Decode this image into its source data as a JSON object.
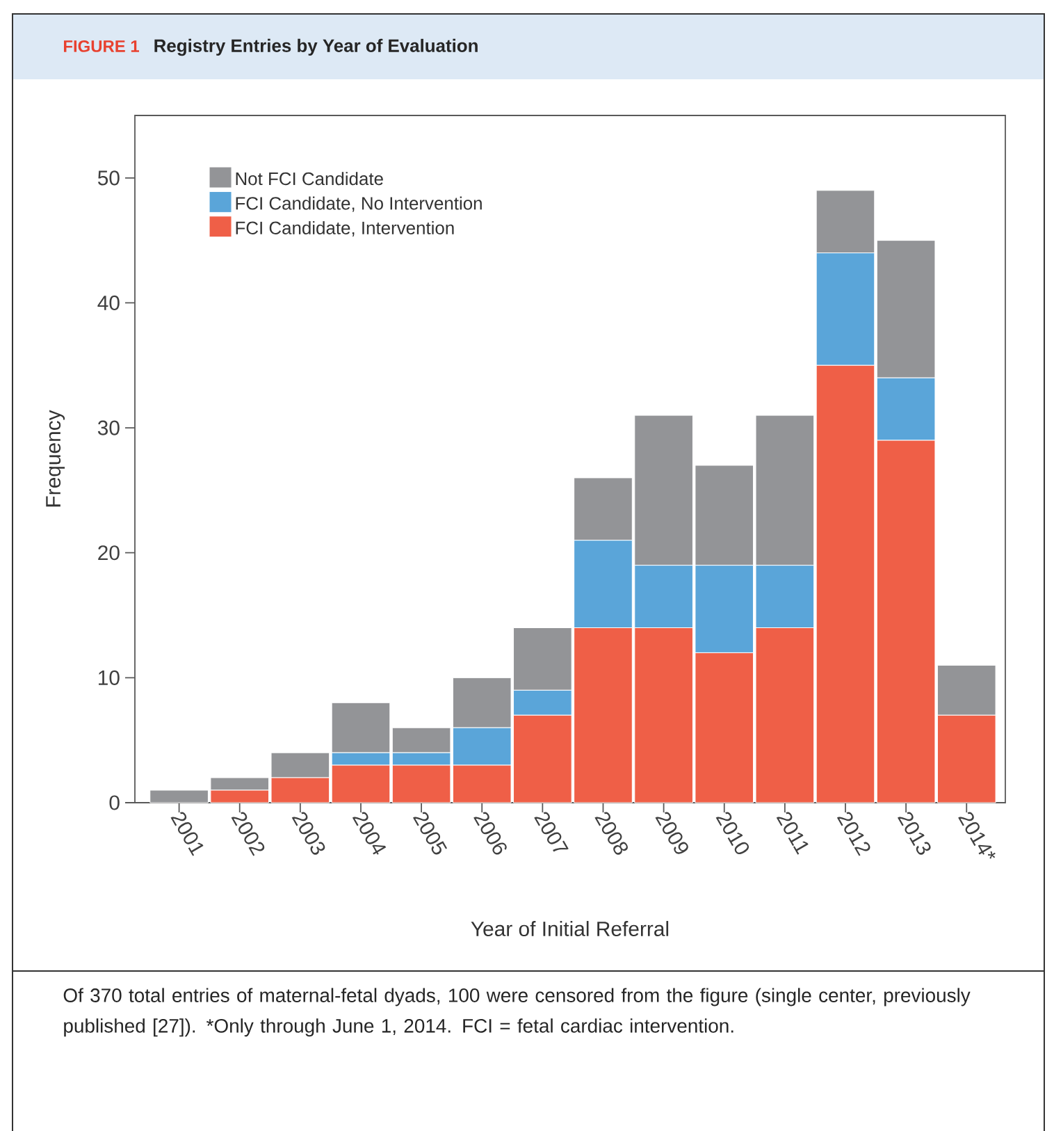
{
  "chart_data": {
    "type": "bar",
    "stacked": true,
    "title": "Registry Entries by Year of Evaluation",
    "xlabel": "Year of Initial Referral",
    "ylabel": "Frequency",
    "categories": [
      "2001",
      "2002",
      "2003",
      "2004",
      "2005",
      "2006",
      "2007",
      "2008",
      "2009",
      "2010",
      "2011",
      "2012",
      "2013",
      "2014*"
    ],
    "series": [
      {
        "name": "FCI Candidate, Intervention",
        "color": "#ef5f47",
        "values": [
          0,
          1,
          2,
          3,
          3,
          3,
          7,
          14,
          14,
          12,
          14,
          35,
          29,
          7
        ]
      },
      {
        "name": "FCI Candidate, No Intervention",
        "color": "#5aa5d9",
        "values": [
          0,
          0,
          0,
          1,
          1,
          3,
          2,
          7,
          5,
          7,
          5,
          9,
          5,
          0
        ]
      },
      {
        "name": "Not FCI Candidate",
        "color": "#939497",
        "values": [
          1,
          1,
          2,
          4,
          2,
          4,
          5,
          5,
          12,
          8,
          12,
          5,
          11,
          4
        ]
      }
    ],
    "ylim": [
      0,
      55
    ],
    "yticks": [
      0,
      10,
      20,
      30,
      40,
      50
    ],
    "legend": "top left",
    "grid": false,
    "annotations": [
      "FIGURE 1",
      "Of 370 total entries of maternal-fetal dyads, 100 were censored from the figure (single center, previously published [27]). *Only through June 1, 2014. FCI = fetal cardiac intervention."
    ]
  }
}
